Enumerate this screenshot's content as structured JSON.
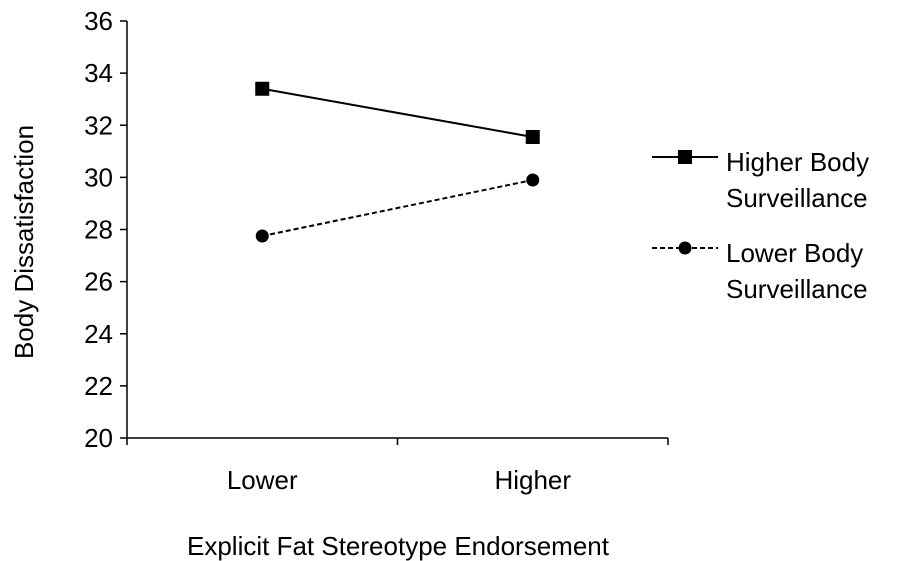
{
  "chart_data": {
    "type": "line",
    "title": "",
    "xlabel": "Explicit Fat Stereotype Endorsement",
    "ylabel": "Body Dissatisfaction",
    "categories": [
      "Lower",
      "Higher"
    ],
    "ylim": [
      20,
      36
    ],
    "yticks": [
      20,
      22,
      24,
      26,
      28,
      30,
      32,
      34,
      36
    ],
    "ytick_labels": [
      "20",
      "22",
      "24",
      "26",
      "28",
      "30",
      "32",
      "34",
      "36"
    ],
    "grid": false,
    "legend_position": "right",
    "series": [
      {
        "name_lines": [
          "Higher Body",
          "Surveillance"
        ],
        "values": [
          33.4,
          31.55
        ],
        "marker": "square",
        "line_style": "solid",
        "color": "#000000"
      },
      {
        "name_lines": [
          "Lower Body",
          "Surveillance"
        ],
        "values": [
          27.75,
          29.9
        ],
        "marker": "circle",
        "line_style": "dashed",
        "color": "#000000"
      }
    ]
  }
}
